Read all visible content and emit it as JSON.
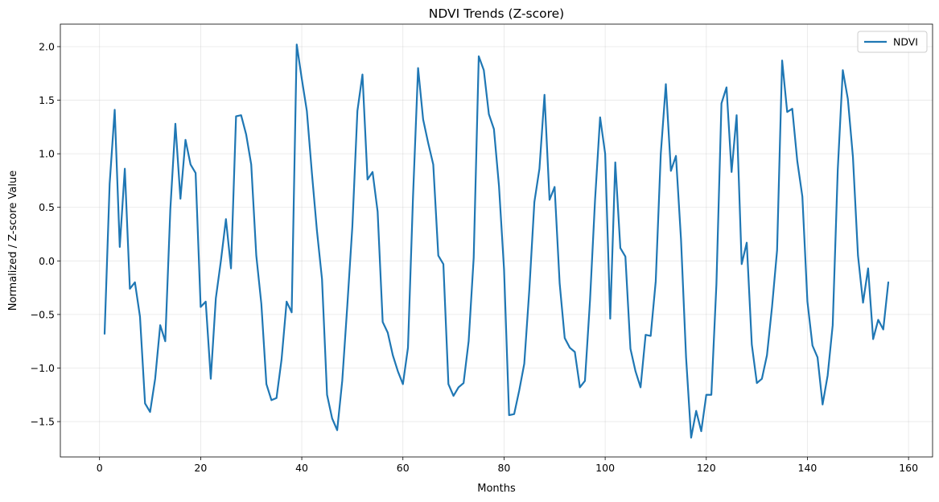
{
  "chart_data": {
    "type": "line",
    "title": "NDVI Trends (Z-score)",
    "xlabel": "Months",
    "ylabel": "Normalized / Z-score Value",
    "xlim": [
      -7.75,
      164.75
    ],
    "ylim": [
      -1.83,
      2.21
    ],
    "xticks": [
      0,
      20,
      40,
      60,
      80,
      100,
      120,
      140,
      160
    ],
    "xtick_labels": [
      "0",
      "20",
      "40",
      "60",
      "80",
      "100",
      "120",
      "140",
      "160"
    ],
    "yticks": [
      -1.5,
      -1.0,
      -0.5,
      0.0,
      0.5,
      1.0,
      1.5,
      2.0
    ],
    "ytick_labels": [
      "−1.5",
      "−1.0",
      "−0.5",
      "0.0",
      "0.5",
      "1.0",
      "1.5",
      "2.0"
    ],
    "grid": true,
    "legend_position": "top-right",
    "series": [
      {
        "name": "NDVI",
        "color": "#1f77b4",
        "x": [
          1,
          2,
          3,
          4,
          5,
          6,
          7,
          8,
          9,
          10,
          11,
          12,
          13,
          14,
          15,
          16,
          17,
          18,
          19,
          20,
          21,
          22,
          23,
          24,
          25,
          26,
          27,
          28,
          29,
          30,
          31,
          32,
          33,
          34,
          35,
          36,
          37,
          38,
          39,
          40,
          41,
          42,
          43,
          44,
          45,
          46,
          47,
          48,
          49,
          50,
          51,
          52,
          53,
          54,
          55,
          56,
          57,
          58,
          59,
          60,
          61,
          62,
          63,
          64,
          65,
          66,
          67,
          68,
          69,
          70,
          71,
          72,
          73,
          74,
          75,
          76,
          77,
          78,
          79,
          80,
          81,
          82,
          83,
          84,
          85,
          86,
          87,
          88,
          89,
          90,
          91,
          92,
          93,
          94,
          95,
          96,
          97,
          98,
          99,
          100,
          101,
          102,
          103,
          104,
          105,
          106,
          107,
          108,
          109,
          110,
          111,
          112,
          113,
          114,
          115,
          116,
          117,
          118,
          119,
          120,
          121,
          122,
          123,
          124,
          125,
          126,
          127,
          128,
          129,
          130,
          131,
          132,
          133,
          134,
          135,
          136,
          137,
          138,
          139,
          140,
          141,
          142,
          143,
          144,
          145,
          146,
          147,
          148,
          149,
          150,
          151,
          152,
          153,
          154,
          155,
          156
        ],
        "values": [
          -0.68,
          0.72,
          1.41,
          0.13,
          0.86,
          -0.26,
          -0.2,
          -0.52,
          -1.33,
          -1.41,
          -1.1,
          -0.6,
          -0.75,
          0.48,
          1.28,
          0.58,
          1.13,
          0.9,
          0.82,
          -0.43,
          -0.38,
          -1.1,
          -0.35,
          0.0,
          0.39,
          -0.07,
          1.35,
          1.36,
          1.18,
          0.9,
          0.05,
          -0.4,
          -1.15,
          -1.3,
          -1.28,
          -0.92,
          -0.38,
          -0.48,
          2.02,
          1.7,
          1.4,
          0.82,
          0.28,
          -0.17,
          -1.25,
          -1.47,
          -1.58,
          -1.12,
          -0.42,
          0.32,
          1.4,
          1.74,
          0.76,
          0.83,
          0.46,
          -0.57,
          -0.67,
          -0.88,
          -1.03,
          -1.15,
          -0.81,
          0.6,
          1.8,
          1.32,
          1.1,
          0.9,
          0.05,
          -0.03,
          -1.15,
          -1.26,
          -1.18,
          -1.14,
          -0.75,
          0.03,
          1.91,
          1.78,
          1.37,
          1.23,
          0.7,
          -0.08,
          -1.44,
          -1.43,
          -1.21,
          -0.96,
          -0.27,
          0.55,
          0.86,
          1.55,
          0.57,
          0.69,
          -0.21,
          -0.72,
          -0.81,
          -0.85,
          -1.18,
          -1.12,
          -0.37,
          0.57,
          1.34,
          1.0,
          -0.54,
          0.92,
          0.12,
          0.04,
          -0.82,
          -1.03,
          -1.18,
          -0.69,
          -0.7,
          -0.19,
          1.0,
          1.65,
          0.84,
          0.98,
          0.2,
          -0.9,
          -1.65,
          -1.4,
          -1.59,
          -1.25,
          -1.25,
          -0.22,
          1.47,
          1.62,
          0.83,
          1.36,
          -0.03,
          0.17,
          -0.78,
          -1.14,
          -1.1,
          -0.88,
          -0.43,
          0.1,
          1.87,
          1.39,
          1.42,
          0.93,
          0.6,
          -0.38,
          -0.79,
          -0.9,
          -1.34,
          -1.07,
          -0.6,
          0.85,
          1.78,
          1.51,
          0.97,
          0.05,
          -0.39,
          -0.07,
          -0.73,
          -0.55,
          -0.64,
          -0.2
        ]
      }
    ]
  }
}
